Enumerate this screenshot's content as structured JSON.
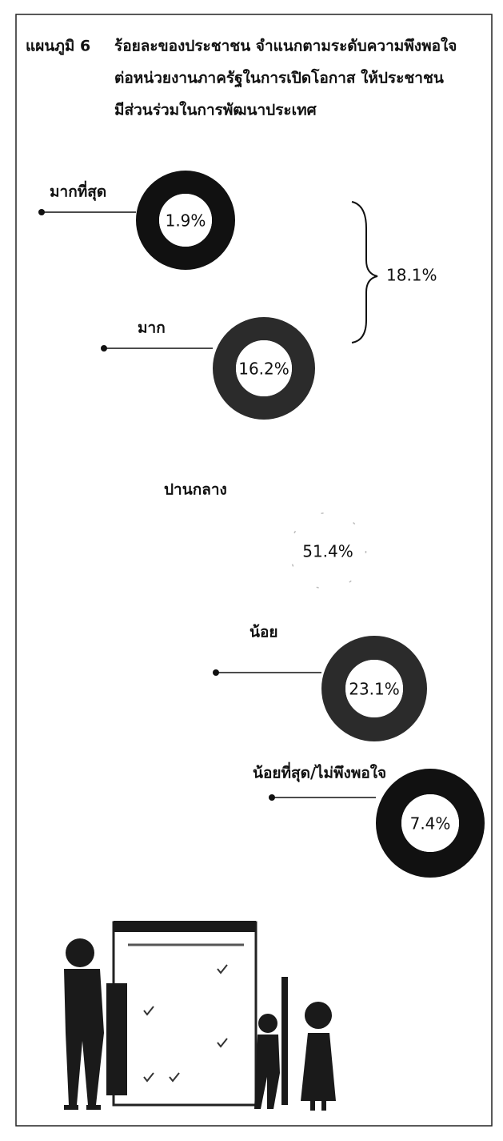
{
  "chart_data": {
    "type": "donut-list",
    "title_number": "แผนภูมิ 6",
    "title": [
      "ร้อยละของประชาชน จำแนกตามระดับความพึงพอใจ",
      "ต่อหน่วยงานภาครัฐในการเปิดโอกาส ให้ประชาชน",
      "มีส่วนร่วมในการพัฒนาประเทศ"
    ],
    "categories": [
      "มากที่สุด",
      "มาก",
      "ปานกลาง",
      "น้อย",
      "น้อยที่สุด/ไม่พึงพอใจ"
    ],
    "values": [
      1.9,
      16.2,
      51.4,
      23.1,
      7.4
    ],
    "value_labels": [
      "1.9%",
      "16.2%",
      "51.4%",
      "23.1%",
      "7.4%"
    ],
    "colors": [
      "#111111",
      "#2b2b2b",
      "#bbbbbb",
      "#2b2b2b",
      "#111111"
    ],
    "annotation": "18.1%"
  }
}
